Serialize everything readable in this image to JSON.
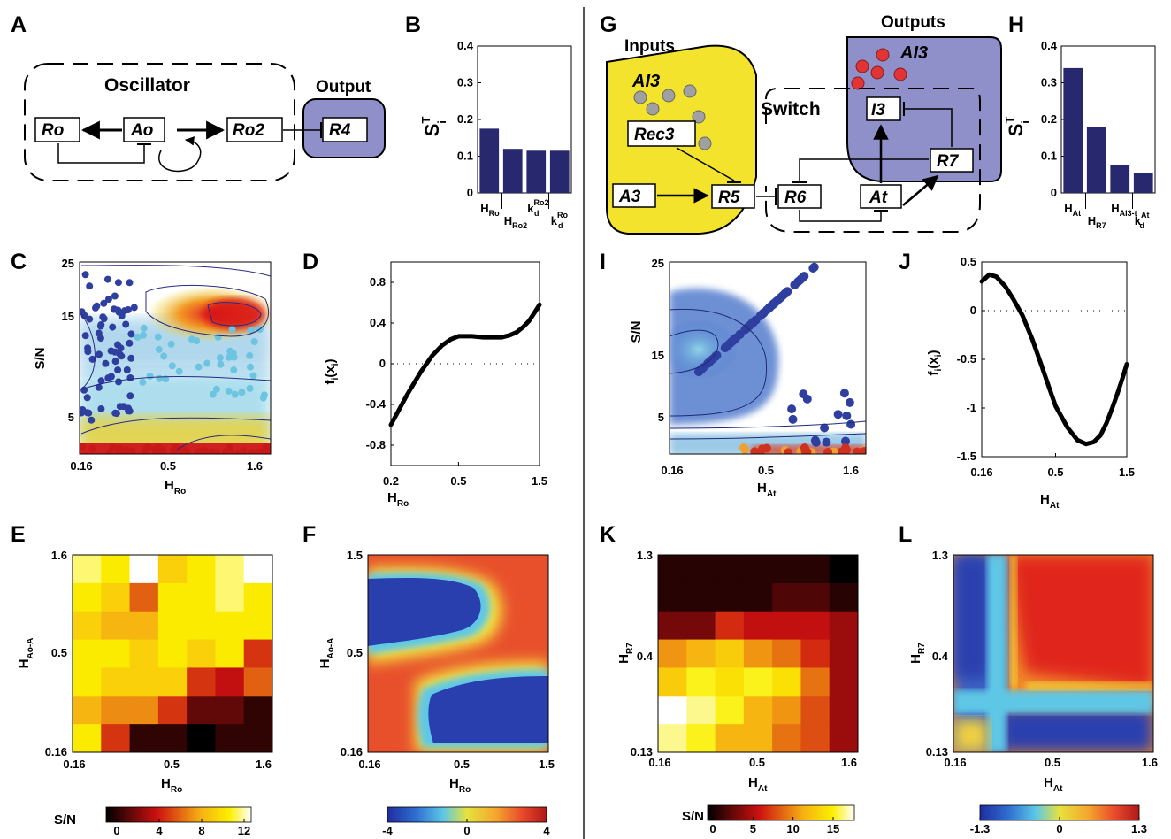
{
  "panels": {
    "A": {
      "label": "A",
      "module_title": "Oscillator",
      "output_title": "Output",
      "nodes": [
        "Ro",
        "Ao",
        "Ro2",
        "R4"
      ]
    },
    "B": {
      "label": "B",
      "ylabel": "S",
      "ylabel_sup": "T",
      "ylabel_sub": "i",
      "chart_data": {
        "type": "bar",
        "categories": [
          {
            "main": "H",
            "sub": "Ro",
            "sup": ""
          },
          {
            "main": "H",
            "sub": "Ro2",
            "sup": ""
          },
          {
            "main": "k",
            "sub": "d",
            "sup": "Ro2"
          },
          {
            "main": "k",
            "sub": "d",
            "sup": "Ro"
          }
        ],
        "values": [
          0.175,
          0.12,
          0.115,
          0.115
        ],
        "ylim": [
          0,
          0.4
        ],
        "yticks": [
          "0",
          "0.1",
          "0.2",
          "0.3",
          "0.4"
        ],
        "color": "#28286e"
      }
    },
    "C": {
      "label": "C",
      "ylabel": "S/N",
      "xlabel_main": "H",
      "xlabel_sub": "Ro",
      "yticks": [
        "5",
        "15",
        "25"
      ],
      "xticks": [
        "0.16",
        "0.5",
        "1.6"
      ]
    },
    "D": {
      "label": "D",
      "ylabel_main": "f",
      "ylabel_sub": "i",
      "ylabel_arg": "(x",
      "ylabel_arg_sub": "i",
      "ylabel_close": ")",
      "xlabel_main": "H",
      "xlabel_sub": "Ro",
      "chart_data": {
        "type": "line",
        "x": [
          0.2,
          0.25,
          0.3,
          0.35,
          0.4,
          0.45,
          0.5,
          0.6,
          0.7,
          0.8,
          0.9,
          1.0,
          1.1,
          1.2,
          1.3,
          1.4,
          1.5
        ],
        "y": [
          -0.6,
          -0.3,
          -0.08,
          0.08,
          0.18,
          0.24,
          0.27,
          0.27,
          0.26,
          0.26,
          0.26,
          0.28,
          0.31,
          0.36,
          0.42,
          0.5,
          0.58
        ],
        "xticks": [
          "0.2",
          "0.5",
          "1.5"
        ],
        "xtick_values": [
          0.2,
          0.5,
          1.5
        ],
        "yticks": [
          "-0.8",
          "-0.4",
          "0",
          "0.4",
          "0.8"
        ],
        "ylim": [
          -1.0,
          1.0
        ],
        "xlim": [
          0.2,
          1.5
        ],
        "xscale": "log"
      }
    },
    "E": {
      "label": "E",
      "ylabel_main": "H",
      "ylabel_sub": "Ao-A",
      "xlabel_main": "H",
      "xlabel_sub": "Ro",
      "yticks": [
        "1.6",
        "0.5",
        "0.16"
      ],
      "xticks": [
        "0.16",
        "0.5",
        "1.6"
      ],
      "colorbar": {
        "label": "S/N",
        "ticks": [
          "0",
          "4",
          "8",
          "12"
        ],
        "range": [
          0,
          12
        ]
      },
      "chart_data": {
        "type": "heatmap",
        "zlim": [
          0,
          12
        ],
        "z": [
          [
            11,
            10,
            12,
            9,
            10,
            11,
            12
          ],
          [
            10,
            9,
            6,
            10,
            10,
            11,
            10
          ],
          [
            9,
            8,
            8,
            10,
            10,
            10,
            10
          ],
          [
            10,
            10,
            9,
            10,
            9,
            10,
            5
          ],
          [
            10,
            9,
            9,
            9,
            5,
            4,
            6
          ],
          [
            8,
            7,
            7,
            5,
            2,
            2,
            1
          ],
          [
            10,
            5,
            1,
            1,
            0,
            1,
            1
          ]
        ]
      }
    },
    "F": {
      "label": "F",
      "ylabel_main": "H",
      "ylabel_sub": "Ao-A",
      "xlabel_main": "H",
      "xlabel_sub": "Ro",
      "yticks": [
        "1.5",
        "0.5",
        "0.16"
      ],
      "xticks": [
        "0.16",
        "0.5",
        "1.5"
      ],
      "colorbar": {
        "ticks": [
          "-4",
          "0",
          "4"
        ],
        "range": [
          -4,
          4
        ]
      }
    },
    "G": {
      "label": "G",
      "inputs_title": "Inputs",
      "outputs_title": "Outputs",
      "switch_title": "Switch",
      "input_molecule": "AI3",
      "output_molecule": "AI3",
      "nodes": [
        "Rec3",
        "A3",
        "R5",
        "R6",
        "At",
        "I3",
        "R7"
      ]
    },
    "H": {
      "label": "H",
      "ylabel": "S",
      "ylabel_sup": "T",
      "ylabel_sub": "i",
      "chart_data": {
        "type": "bar",
        "categories": [
          {
            "main": "H",
            "sub": "At",
            "sup": ""
          },
          {
            "main": "H",
            "sub": "R7",
            "sup": ""
          },
          {
            "main": "H",
            "sub": "AI3-t",
            "sup": ""
          },
          {
            "main": "k",
            "sub": "d",
            "sup": "At"
          }
        ],
        "values": [
          0.34,
          0.18,
          0.075,
          0.055
        ],
        "ylim": [
          0,
          0.4
        ],
        "yticks": [
          "0",
          "0.1",
          "0.2",
          "0.3",
          "0.4"
        ],
        "color": "#28286e"
      }
    },
    "I": {
      "label": "I",
      "ylabel": "S/N",
      "xlabel_main": "H",
      "xlabel_sub": "At",
      "yticks": [
        "5",
        "15",
        "25"
      ],
      "xticks": [
        "0.16",
        "0.5",
        "1.6"
      ]
    },
    "J": {
      "label": "J",
      "ylabel_main": "f",
      "ylabel_sub": "i",
      "ylabel_arg": "(x",
      "ylabel_arg_sub": "i",
      "ylabel_close": ")",
      "xlabel_main": "H",
      "xlabel_sub": "At",
      "chart_data": {
        "type": "line",
        "x": [
          0.16,
          0.18,
          0.2,
          0.23,
          0.26,
          0.3,
          0.35,
          0.4,
          0.45,
          0.5,
          0.6,
          0.7,
          0.8,
          0.9,
          1.0,
          1.1,
          1.2,
          1.3,
          1.4,
          1.5
        ],
        "y": [
          0.3,
          0.37,
          0.35,
          0.25,
          0.12,
          -0.05,
          -0.3,
          -0.55,
          -0.78,
          -0.98,
          -1.2,
          -1.33,
          -1.37,
          -1.35,
          -1.28,
          -1.15,
          -1.0,
          -0.85,
          -0.7,
          -0.55
        ],
        "xticks": [
          "0.16",
          "0.5",
          "1.5"
        ],
        "xtick_values": [
          0.16,
          0.5,
          1.5
        ],
        "yticks": [
          "-1.5",
          "-1",
          "-0.5",
          "0",
          "0.5"
        ],
        "ylim": [
          -1.5,
          0.5
        ],
        "xlim": [
          0.16,
          1.5
        ],
        "xscale": "log"
      }
    },
    "K": {
      "label": "K",
      "ylabel_main": "H",
      "ylabel_sub": "R7",
      "xlabel_main": "H",
      "xlabel_sub": "At",
      "yticks": [
        "1.3",
        "0.4",
        "0.13"
      ],
      "xticks": [
        "0.16",
        "0.5",
        "1.6"
      ],
      "colorbar": {
        "label": "S/N",
        "ticks": [
          "0",
          "5",
          "10",
          "15"
        ],
        "range": [
          0,
          15
        ]
      },
      "chart_data": {
        "type": "heatmap",
        "zlim": [
          0,
          15
        ],
        "z": [
          [
            1,
            1,
            1,
            1,
            1,
            1,
            0
          ],
          [
            1,
            1,
            1,
            1,
            2,
            2,
            1
          ],
          [
            3,
            3,
            6,
            5,
            5,
            5,
            4
          ],
          [
            9,
            10,
            11,
            9,
            8,
            6,
            4
          ],
          [
            11,
            13,
            12,
            13,
            12,
            8,
            4
          ],
          [
            15,
            14,
            13,
            10,
            9,
            7,
            4
          ],
          [
            14,
            13,
            10,
            10,
            8,
            7,
            4
          ]
        ]
      }
    },
    "L": {
      "label": "L",
      "ylabel_main": "H",
      "ylabel_sub": "R7",
      "xlabel_main": "H",
      "xlabel_sub": "At",
      "yticks": [
        "1.3",
        "0.4",
        "0.13"
      ],
      "xticks": [
        "0.16",
        "0.5",
        "1.6"
      ],
      "colorbar": {
        "ticks": [
          "-1.3",
          "0",
          "1.3"
        ],
        "range": [
          -1.3,
          1.3
        ]
      }
    }
  },
  "colors": {
    "box_purple": "#8f8fca",
    "box_yellow": "#f3e32c",
    "bar": "#28286e",
    "red_dot": "#e23434",
    "grey_dot": "#a0a0a0"
  }
}
